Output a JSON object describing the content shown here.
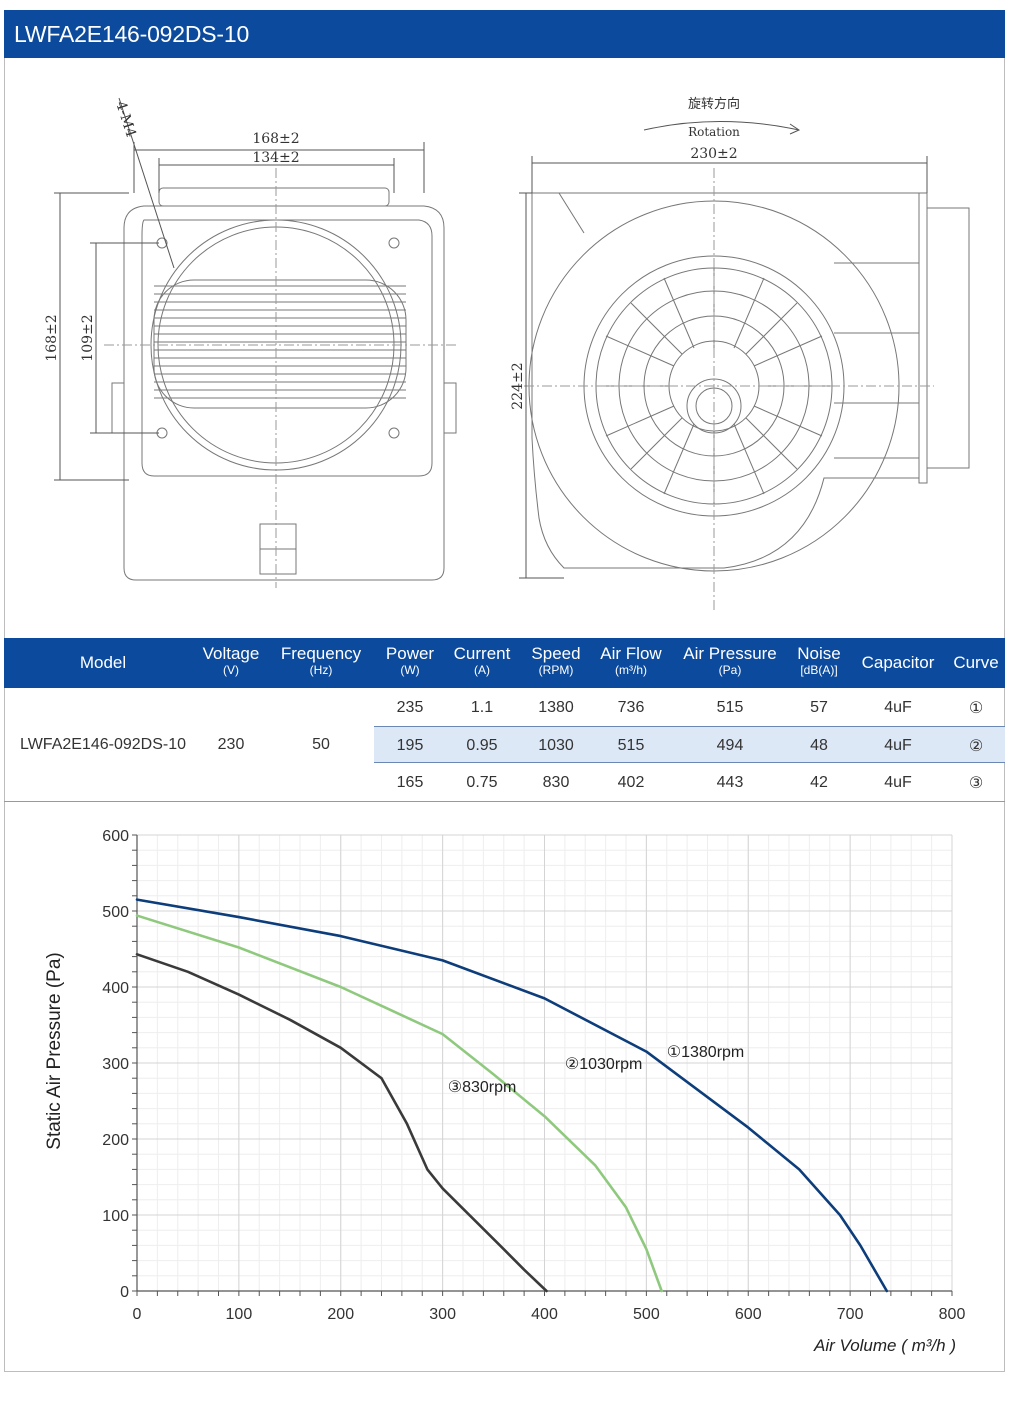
{
  "header": {
    "title": "LWFA2E146-092DS-10"
  },
  "drawing": {
    "front_view": {
      "hole_label": "4-M4",
      "width_outer": "168±2",
      "width_inner": "134±2",
      "height_outer": "168±2",
      "height_inner": "109±2"
    },
    "side_view": {
      "rotation_cn": "旋转方向",
      "rotation_en": "Rotation",
      "width": "230±2",
      "height": "224±2"
    }
  },
  "specs": {
    "headers": [
      {
        "label": "Model",
        "unit": ""
      },
      {
        "label": "Voltage",
        "unit": "(V)"
      },
      {
        "label": "Frequency",
        "unit": "(Hz)"
      },
      {
        "label": "Power",
        "unit": "(W)"
      },
      {
        "label": "Current",
        "unit": "(A)"
      },
      {
        "label": "Speed",
        "unit": "(RPM)"
      },
      {
        "label": "Air Flow",
        "unit": "(m³/h)"
      },
      {
        "label": "Air Pressure",
        "unit": "(Pa)"
      },
      {
        "label": "Noise",
        "unit": "[dB(A)]"
      },
      {
        "label": "Capacitor",
        "unit": ""
      },
      {
        "label": "Curve",
        "unit": ""
      }
    ],
    "model": "LWFA2E146-092DS-10",
    "voltage": "230",
    "frequency": "50",
    "rows": [
      {
        "power": "235",
        "current": "1.1",
        "speed": "1380",
        "airflow": "736",
        "pressure": "515",
        "noise": "57",
        "capacitor": "4uF",
        "curve": "①"
      },
      {
        "power": "195",
        "current": "0.95",
        "speed": "1030",
        "airflow": "515",
        "pressure": "494",
        "noise": "48",
        "capacitor": "4uF",
        "curve": "②"
      },
      {
        "power": "165",
        "current": "0.75",
        "speed": "830",
        "airflow": "402",
        "pressure": "443",
        "noise": "42",
        "capacitor": "4uF",
        "curve": "③"
      }
    ]
  },
  "chart_data": {
    "type": "line",
    "title": "",
    "xlabel": "Air Volume ( m³/h )",
    "ylabel": "Static Air Pressure  (Pa)",
    "xlim": [
      0,
      800
    ],
    "ylim": [
      0,
      600
    ],
    "xticks": [
      0,
      100,
      200,
      300,
      400,
      500,
      600,
      700,
      800
    ],
    "yticks": [
      0,
      100,
      200,
      300,
      400,
      500,
      600
    ],
    "grid": true,
    "series": [
      {
        "name": "①1380rpm",
        "color": "#0d3d7a",
        "x": [
          0,
          100,
          200,
          300,
          400,
          500,
          600,
          650,
          690,
          710,
          736
        ],
        "y": [
          515,
          492,
          467,
          435,
          385,
          315,
          215,
          160,
          100,
          60,
          0
        ]
      },
      {
        "name": "②1030rpm",
        "color": "#8fc97e",
        "x": [
          0,
          100,
          200,
          300,
          350,
          400,
          450,
          480,
          500,
          515
        ],
        "y": [
          494,
          452,
          400,
          338,
          285,
          230,
          165,
          110,
          55,
          0
        ]
      },
      {
        "name": "③830rpm",
        "color": "#3a3a3a",
        "x": [
          0,
          50,
          100,
          150,
          200,
          240,
          265,
          285,
          300,
          330,
          360,
          380,
          402
        ],
        "y": [
          443,
          420,
          390,
          357,
          320,
          280,
          220,
          160,
          135,
          95,
          55,
          28,
          0
        ]
      }
    ]
  }
}
